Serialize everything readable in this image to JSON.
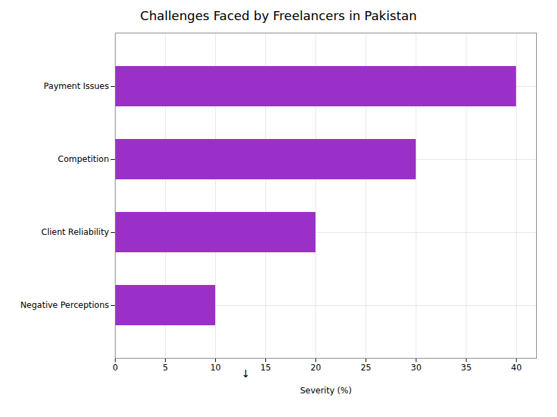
{
  "chart_data": {
    "type": "bar",
    "orientation": "horizontal",
    "title": "Challenges Faced by Freelancers in Pakistan",
    "categories": [
      "Negative Perceptions",
      "Client Reliability",
      "Competition",
      "Payment Issues"
    ],
    "values": [
      10,
      20,
      30,
      40
    ],
    "color": "#9B30C8",
    "xlabel": "Severity (%)",
    "xlim": [
      0,
      42
    ],
    "xticks": [
      0,
      5,
      10,
      15,
      20,
      25,
      30,
      35,
      40
    ],
    "grid": true,
    "annotations": [
      {
        "text": "↓",
        "x": 13
      }
    ]
  }
}
